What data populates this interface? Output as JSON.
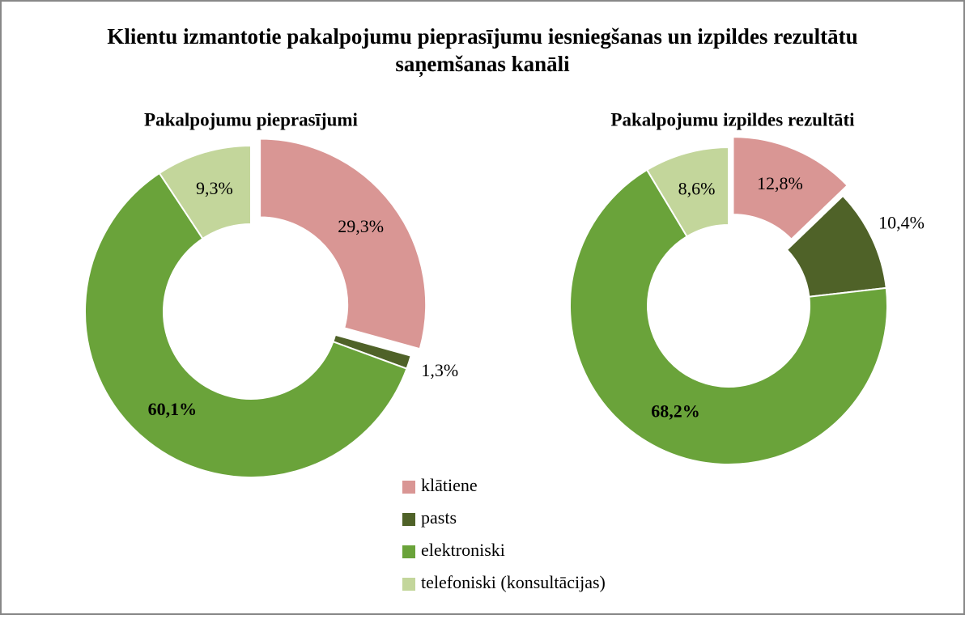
{
  "title": "Klientu izmantotie pakalpojumu pieprasījumu iesniegšanas  un izpildes rezultātu saņemšanas kanāli",
  "chart_data": [
    {
      "type": "donut",
      "title": "Pakalpojumu pieprasījumi",
      "categories": [
        "klātiene",
        "pasts",
        "elektroniski",
        "telefoniski (konsultācijas)"
      ],
      "colors": [
        "#d99694",
        "#4f6228",
        "#6aa33a",
        "#c3d69b"
      ],
      "values": [
        29.3,
        1.3,
        60.1,
        9.3
      ],
      "value_labels": [
        "29,3%",
        "1,3%",
        "60,1%",
        "9,3%"
      ]
    },
    {
      "type": "donut",
      "title": "Pakalpojumu izpildes  rezultāti",
      "categories": [
        "klātiene",
        "pasts",
        "elektroniski",
        "telefoniski (konsultācijas)"
      ],
      "colors": [
        "#d99694",
        "#4f6228",
        "#6aa33a",
        "#c3d69b"
      ],
      "values": [
        12.8,
        10.4,
        68.2,
        8.6
      ],
      "value_labels": [
        "12,8%",
        "10,4%",
        "68,2%",
        "8,6%"
      ]
    }
  ]
}
